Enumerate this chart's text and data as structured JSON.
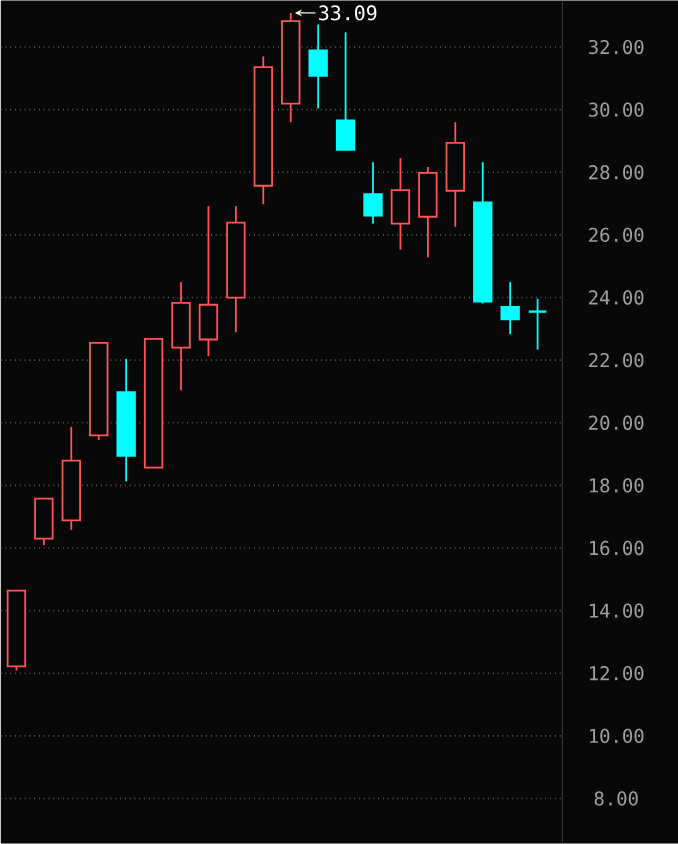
{
  "chart_data": {
    "type": "candlestick",
    "categories": [
      null,
      null,
      null,
      null,
      null,
      null,
      null,
      null,
      null,
      null,
      null,
      null,
      null,
      null,
      null,
      null,
      null,
      null,
      null,
      null
    ],
    "ohlc": [
      [
        12.22,
        14.64,
        12.09,
        14.64
      ],
      [
        16.3,
        17.58,
        16.09,
        17.58
      ],
      [
        16.88,
        19.87,
        16.58,
        18.79
      ],
      [
        19.6,
        22.55,
        19.45,
        22.55
      ],
      [
        20.98,
        22.04,
        18.13,
        18.94
      ],
      [
        18.57,
        22.68,
        18.57,
        22.68
      ],
      [
        22.4,
        24.49,
        21.04,
        23.83
      ],
      [
        22.66,
        26.92,
        22.13,
        23.77
      ],
      [
        24.0,
        26.92,
        22.89,
        26.39
      ],
      [
        27.57,
        31.7,
        26.98,
        31.36
      ],
      [
        30.19,
        33.09,
        29.6,
        32.83
      ],
      [
        31.89,
        32.72,
        30.04,
        31.08
      ],
      [
        29.66,
        32.47,
        28.72,
        28.72
      ],
      [
        27.3,
        28.32,
        26.36,
        26.62
      ],
      [
        26.36,
        28.45,
        25.53,
        27.43
      ],
      [
        26.58,
        28.17,
        25.28,
        27.98
      ],
      [
        27.41,
        29.6,
        26.26,
        28.94
      ],
      [
        27.04,
        28.32,
        23.81,
        23.87
      ],
      [
        23.7,
        24.49,
        22.83,
        23.3
      ],
      [
        23.55,
        23.96,
        22.34,
        23.55
      ]
    ],
    "colors": [
      "#ff5555",
      "#ff5555",
      "#ff5555",
      "#ff5555",
      "#00ffff",
      "#ff5555",
      "#ff5555",
      "#ff5555",
      "#ff5555",
      "#ff5555",
      "#ff5555",
      "#00ffff",
      "#00ffff",
      "#00ffff",
      "#ff5555",
      "#ff5555",
      "#ff5555",
      "#00ffff",
      "#00ffff",
      "#00ffff"
    ],
    "ylim": [
      6.56,
      33.49
    ],
    "yticks": [
      {
        "value": 8,
        "label": "8.00"
      },
      {
        "value": 10,
        "label": "10.00"
      },
      {
        "value": 12,
        "label": "12.00"
      },
      {
        "value": 14,
        "label": "14.00"
      },
      {
        "value": 16,
        "label": "16.00"
      },
      {
        "value": 18,
        "label": "18.00"
      },
      {
        "value": 20,
        "label": "20.00"
      },
      {
        "value": 22,
        "label": "22.00"
      },
      {
        "value": 24,
        "label": "24.00"
      },
      {
        "value": 26,
        "label": "26.00"
      },
      {
        "value": 28,
        "label": "28.00"
      },
      {
        "value": 30,
        "label": "30.00"
      },
      {
        "value": 32,
        "label": "32.00"
      }
    ],
    "grid": "y",
    "tick_labels": "y",
    "annotations": [
      "33.09"
    ]
  }
}
